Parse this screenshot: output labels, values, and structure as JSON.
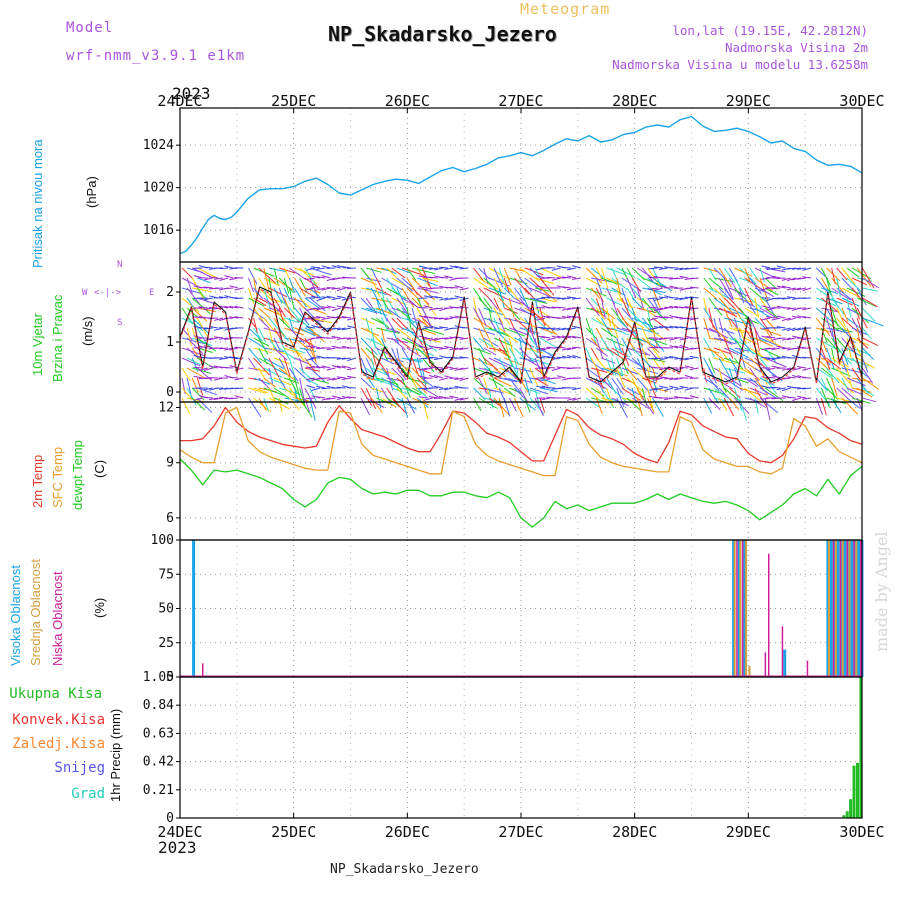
{
  "header": {
    "model_label": "Model",
    "model_name": "wrf-nmm_v3.9.1 e1km",
    "meteogram_label": "Meteogram",
    "station": "NP_Skadarsko_Jezero",
    "coords": "lon,lat (19.15E, 42.2812N)",
    "elevation": "Nadmorska Visina 2m",
    "model_elevation": "Nadmorska Visina u modelu 13.6258m",
    "year_top": "2023",
    "year_bottom": "2023",
    "footer_station": "NP_Skadarsko_Jezero",
    "watermark": "made by Angel"
  },
  "colors": {
    "pressure": "#1aa3e8",
    "temp2m": "#e83a2c",
    "sfc_temp": "#e8a030",
    "dewpt": "#22cc22",
    "high_cloud": "#1aa3e8",
    "mid_cloud": "#d4a040",
    "low_cloud": "#cc1f9a",
    "total_rain": "#22bb22",
    "conv_rain": "#ee3333",
    "frozen": "#ff8833",
    "snow": "#5555ee",
    "grad": "#22ccbb"
  },
  "x_axis": {
    "dates": [
      "24DEC",
      "25DEC",
      "26DEC",
      "27DEC",
      "28DEC",
      "29DEC",
      "30DEC"
    ]
  },
  "panels": {
    "pressure": {
      "label": "Pritisak na nivou mora",
      "unit": "(hPa)"
    },
    "wind": {
      "label1": "10m Vjetar",
      "label2": "Brzina i Pravac",
      "unit": "(m/s)",
      "compass_w": "W",
      "compass_e": "E",
      "compass_n": "N",
      "compass_s": "S"
    },
    "temp": {
      "label1": "2m Temp",
      "label2": "SFC Temp",
      "label3": "dewpt Temp",
      "unit": "(C)"
    },
    "cloud": {
      "label1": "Visoka Oblacnost",
      "label2": "Srednja Oblacnost",
      "label3": "Niska Oblacnost",
      "unit": "(%)"
    },
    "precip": {
      "legend": [
        "Ukupna Kisa",
        "Konvek.Kisa",
        "Zaledj.Kisa",
        "Snijeg",
        "Grad"
      ],
      "unit": "1hr Precip (mm)"
    }
  },
  "chart_data": [
    {
      "type": "line",
      "title": "",
      "ylabel": "(hPa)",
      "ylim": [
        1013,
        1027.5
      ],
      "yticks": [
        "1016",
        "1020",
        "1024"
      ],
      "x_days": [
        0,
        0.05,
        0.1,
        0.15,
        0.2,
        0.25,
        0.3,
        0.35,
        0.4,
        0.45,
        0.5,
        0.6,
        0.7,
        0.8,
        0.9,
        1.0,
        1.1,
        1.2,
        1.3,
        1.4,
        1.5,
        1.6,
        1.7,
        1.8,
        1.9,
        2.0,
        2.1,
        2.2,
        2.3,
        2.4,
        2.5,
        2.6,
        2.7,
        2.8,
        2.9,
        3.0,
        3.1,
        3.2,
        3.3,
        3.4,
        3.5,
        3.6,
        3.7,
        3.8,
        3.9,
        4.0,
        4.1,
        4.2,
        4.3,
        4.4,
        4.5,
        4.6,
        4.7,
        4.8,
        4.9,
        5.0,
        5.1,
        5.2,
        5.3,
        5.4,
        5.5,
        5.6,
        5.7,
        5.8,
        5.9,
        6.0
      ],
      "series": [
        {
          "values": [
            1013.8,
            1014.0,
            1014.6,
            1015.3,
            1016.2,
            1017.0,
            1017.4,
            1017.1,
            1017.0,
            1017.2,
            1017.7,
            1019.0,
            1019.8,
            1019.9,
            1019.9,
            1020.1,
            1020.6,
            1020.9,
            1020.3,
            1019.5,
            1019.3,
            1019.8,
            1020.3,
            1020.6,
            1020.8,
            1020.7,
            1020.4,
            1021.0,
            1021.6,
            1021.9,
            1021.5,
            1021.8,
            1022.2,
            1022.8,
            1023.0,
            1023.3,
            1023.0,
            1023.5,
            1024.1,
            1024.6,
            1024.4,
            1024.9,
            1024.3,
            1024.5,
            1025.0,
            1025.2,
            1025.7,
            1025.9,
            1025.7,
            1026.4,
            1026.7,
            1025.8,
            1025.3,
            1025.4,
            1025.6,
            1025.3,
            1024.8,
            1024.2,
            1024.4,
            1023.7,
            1023.4,
            1022.6,
            1022.1,
            1022.2,
            1022.0,
            1021.4
          ]
        }
      ]
    },
    {
      "type": "line",
      "title": "",
      "ylabel": "(m/s)",
      "ylim": [
        -0.2,
        2.6
      ],
      "yticks": [
        "0",
        "1",
        "2"
      ],
      "x_days": [
        0,
        0.1,
        0.2,
        0.3,
        0.4,
        0.5,
        0.6,
        0.7,
        0.8,
        0.9,
        1.0,
        1.1,
        1.2,
        1.3,
        1.4,
        1.5,
        1.6,
        1.7,
        1.8,
        1.9,
        2.0,
        2.1,
        2.2,
        2.3,
        2.4,
        2.5,
        2.6,
        2.7,
        2.8,
        2.9,
        3.0,
        3.1,
        3.2,
        3.3,
        3.4,
        3.5,
        3.6,
        3.7,
        3.8,
        3.9,
        4.0,
        4.1,
        4.2,
        4.3,
        4.4,
        4.5,
        4.6,
        4.7,
        4.8,
        4.9,
        5.0,
        5.1,
        5.2,
        5.3,
        5.4,
        5.5,
        5.6,
        5.7,
        5.8,
        5.9,
        6.0
      ],
      "series": [
        {
          "values": [
            1.1,
            1.7,
            0.5,
            1.8,
            1.6,
            0.4,
            1.2,
            2.1,
            2.0,
            1.0,
            0.9,
            1.6,
            1.4,
            1.2,
            1.5,
            2.0,
            0.4,
            0.3,
            0.9,
            0.6,
            0.3,
            1.4,
            0.6,
            0.4,
            0.7,
            1.9,
            0.3,
            0.4,
            0.3,
            0.5,
            0.2,
            1.8,
            0.3,
            0.8,
            1.1,
            1.7,
            0.3,
            0.2,
            0.4,
            0.6,
            1.4,
            0.3,
            0.3,
            0.5,
            0.4,
            1.9,
            0.4,
            0.3,
            0.2,
            0.3,
            1.5,
            0.5,
            0.2,
            0.3,
            0.5,
            1.3,
            0.2,
            2.0,
            0.6,
            1.1,
            0.3
          ]
        }
      ]
    },
    {
      "type": "line",
      "title": "",
      "ylabel": "(C)",
      "ylim": [
        4.8,
        12.3
      ],
      "yticks": [
        "6",
        "9",
        "12"
      ],
      "x_days": [
        0,
        0.1,
        0.2,
        0.3,
        0.4,
        0.5,
        0.6,
        0.7,
        0.8,
        0.9,
        1.0,
        1.1,
        1.2,
        1.3,
        1.4,
        1.5,
        1.6,
        1.7,
        1.8,
        1.9,
        2.0,
        2.1,
        2.2,
        2.3,
        2.4,
        2.5,
        2.6,
        2.7,
        2.8,
        2.9,
        3.0,
        3.1,
        3.2,
        3.3,
        3.4,
        3.5,
        3.6,
        3.7,
        3.8,
        3.9,
        4.0,
        4.1,
        4.2,
        4.3,
        4.4,
        4.5,
        4.6,
        4.7,
        4.8,
        4.9,
        5.0,
        5.1,
        5.2,
        5.3,
        5.4,
        5.5,
        5.6,
        5.7,
        5.8,
        5.9,
        6.0
      ],
      "series": [
        {
          "name": "2m Temp",
          "values": [
            10.2,
            10.2,
            10.3,
            11.0,
            12.0,
            11.2,
            10.7,
            10.4,
            10.2,
            10.0,
            9.9,
            9.8,
            9.9,
            11.2,
            12.1,
            11.4,
            10.8,
            10.6,
            10.4,
            10.1,
            9.8,
            9.6,
            9.6,
            10.6,
            11.8,
            11.7,
            11.2,
            10.6,
            10.4,
            10.1,
            9.6,
            9.1,
            9.1,
            10.5,
            11.9,
            11.6,
            10.9,
            10.5,
            10.3,
            10.0,
            9.5,
            9.2,
            9.0,
            10.1,
            11.8,
            11.6,
            11.0,
            10.7,
            10.4,
            10.3,
            9.5,
            9.1,
            9.0,
            9.4,
            10.3,
            11.5,
            11.4,
            10.9,
            10.6,
            10.2,
            10.0
          ]
        },
        {
          "name": "SFC Temp",
          "values": [
            9.7,
            9.3,
            9.0,
            9.0,
            11.7,
            12.0,
            10.2,
            9.6,
            9.3,
            9.1,
            8.9,
            8.7,
            8.6,
            8.6,
            11.8,
            11.7,
            10.0,
            9.4,
            9.2,
            9.0,
            8.8,
            8.6,
            8.4,
            8.4,
            11.8,
            11.5,
            10.0,
            9.4,
            9.1,
            8.9,
            8.7,
            8.5,
            8.3,
            8.3,
            11.5,
            11.3,
            10.0,
            9.3,
            9.0,
            8.8,
            8.7,
            8.6,
            8.5,
            8.5,
            11.5,
            11.2,
            9.7,
            9.2,
            9.0,
            8.8,
            8.8,
            8.5,
            8.4,
            8.7,
            11.4,
            11.0,
            9.9,
            10.3,
            9.6,
            9.3,
            9.0
          ]
        },
        {
          "name": "dewpt Temp",
          "values": [
            9.2,
            8.6,
            7.8,
            8.6,
            8.5,
            8.6,
            8.4,
            8.2,
            7.9,
            7.6,
            7.0,
            6.6,
            7.0,
            7.9,
            8.2,
            8.1,
            7.6,
            7.3,
            7.4,
            7.3,
            7.5,
            7.5,
            7.2,
            7.2,
            7.4,
            7.4,
            7.2,
            7.1,
            7.4,
            7.1,
            6.0,
            5.5,
            6.0,
            6.9,
            6.5,
            6.7,
            6.4,
            6.6,
            6.8,
            6.8,
            6.8,
            7.0,
            7.3,
            7.0,
            7.3,
            7.1,
            6.9,
            6.8,
            6.9,
            6.7,
            6.4,
            5.9,
            6.3,
            6.7,
            7.3,
            7.6,
            7.2,
            8.1,
            7.3,
            8.3,
            8.8
          ]
        }
      ]
    },
    {
      "type": "bar",
      "title": "",
      "ylabel": "(%)",
      "ylim": [
        0,
        100
      ],
      "yticks": [
        "0",
        "25",
        "50",
        "75",
        "100"
      ],
      "series": [
        {
          "name": "Visoka Oblacnost",
          "x_days": [
            0.12,
            4.87,
            4.92,
            4.97,
            5.32,
            5.7,
            5.73,
            5.76,
            5.79,
            5.82,
            5.85,
            5.88,
            5.91,
            5.94,
            5.97,
            6.0
          ],
          "values": [
            100,
            100,
            100,
            100,
            20,
            100,
            100,
            100,
            100,
            100,
            100,
            100,
            100,
            100,
            100,
            100
          ]
        },
        {
          "name": "Srednja Oblacnost",
          "x_days": [
            4.88,
            4.93,
            4.98,
            5.01,
            5.71,
            5.77,
            5.83,
            5.89,
            5.95
          ],
          "values": [
            100,
            100,
            100,
            8,
            100,
            100,
            100,
            100,
            100
          ]
        },
        {
          "name": "Niska Oblacnost",
          "x_days": [
            0.2,
            4.9,
            4.95,
            5.15,
            5.18,
            5.3,
            5.52,
            5.75,
            5.81,
            5.87,
            5.93,
            5.99
          ],
          "values": [
            10,
            100,
            100,
            18,
            90,
            37,
            12,
            100,
            100,
            100,
            100,
            100
          ]
        }
      ]
    },
    {
      "type": "bar",
      "title": "",
      "ylabel": "1hr Precip (mm)",
      "ylim": [
        0,
        1.05
      ],
      "yticks": [
        "0",
        "0.21",
        "0.42",
        "0.63",
        "0.84",
        "1.05"
      ],
      "series": [
        {
          "name": "Ukupna Kisa",
          "x_days": [
            5.84,
            5.87,
            5.9,
            5.93,
            5.96,
            5.99
          ],
          "values": [
            0.02,
            0.05,
            0.14,
            0.39,
            0.41,
            1.05
          ]
        }
      ]
    }
  ]
}
